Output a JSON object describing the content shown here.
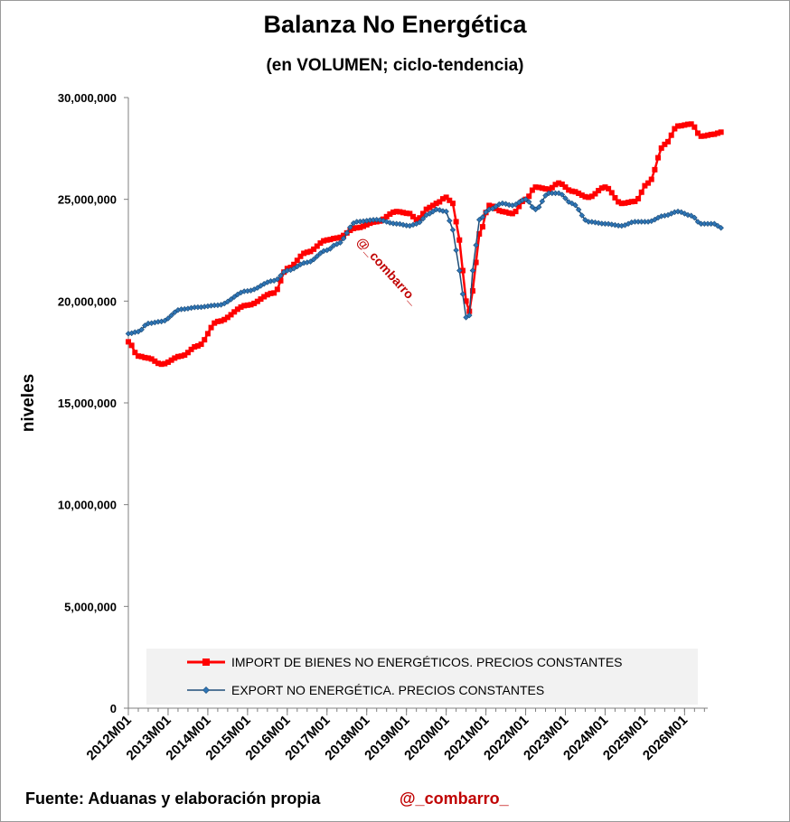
{
  "chart_data": {
    "type": "line",
    "title": "Balanza No Energética",
    "subtitle": "(en VOLUMEN; ciclo-tendencia)",
    "ylabel": "niveles",
    "xlabel": "",
    "ylim": [
      0,
      30000000
    ],
    "y_ticks": [
      "0",
      "5,000,000",
      "10,000,000",
      "15,000,000",
      "20,000,000",
      "25,000,000",
      "30,000,000"
    ],
    "y_tick_values": [
      0,
      5000000,
      10000000,
      15000000,
      20000000,
      25000000,
      30000000
    ],
    "x_ticks": [
      "2012M01",
      "2013M01",
      "2014M01",
      "2015M01",
      "2016M01",
      "2017M01",
      "2018M01",
      "2019M01",
      "2020M01",
      "2021M01",
      "2022M01",
      "2023M01",
      "2024M01",
      "2025M01",
      "2026M01"
    ],
    "x_start": "2012M01",
    "x_end": "2026M07",
    "legend_placement": "bottom",
    "grid": false,
    "series": [
      {
        "name": "IMPORT DE BIENES NO ENERGÉTICOS. PRECIOS CONSTANTES",
        "color": "#ff0000",
        "marker": "square",
        "anchors": [
          {
            "x": "2012M01",
            "y": 18000000
          },
          {
            "x": "2012M04",
            "y": 17300000
          },
          {
            "x": "2012M07",
            "y": 17200000
          },
          {
            "x": "2012M11",
            "y": 16900000
          },
          {
            "x": "2013M05",
            "y": 17300000
          },
          {
            "x": "2013M10",
            "y": 17800000
          },
          {
            "x": "2014M04",
            "y": 19000000
          },
          {
            "x": "2015M01",
            "y": 19800000
          },
          {
            "x": "2015M09",
            "y": 20400000
          },
          {
            "x": "2016M01",
            "y": 21600000
          },
          {
            "x": "2016M07",
            "y": 22400000
          },
          {
            "x": "2017M01",
            "y": 23000000
          },
          {
            "x": "2017M04",
            "y": 23100000
          },
          {
            "x": "2017M10",
            "y": 23600000
          },
          {
            "x": "2018M04",
            "y": 23900000
          },
          {
            "x": "2018M10",
            "y": 24400000
          },
          {
            "x": "2019M02",
            "y": 24300000
          },
          {
            "x": "2019M04",
            "y": 24000000
          },
          {
            "x": "2019M08",
            "y": 24600000
          },
          {
            "x": "2019M10",
            "y": 24800000
          },
          {
            "x": "2020M01",
            "y": 25100000
          },
          {
            "x": "2020M03",
            "y": 24800000
          },
          {
            "x": "2020M05",
            "y": 23000000
          },
          {
            "x": "2020M07",
            "y": 20000000
          },
          {
            "x": "2020M08",
            "y": 19500000
          },
          {
            "x": "2020M09",
            "y": 20500000
          },
          {
            "x": "2020M11",
            "y": 23300000
          },
          {
            "x": "2021M02",
            "y": 24700000
          },
          {
            "x": "2021M06",
            "y": 24400000
          },
          {
            "x": "2021M09",
            "y": 24300000
          },
          {
            "x": "2022M01",
            "y": 25000000
          },
          {
            "x": "2022M04",
            "y": 25600000
          },
          {
            "x": "2022M08",
            "y": 25500000
          },
          {
            "x": "2022M11",
            "y": 25800000
          },
          {
            "x": "2023M03",
            "y": 25400000
          },
          {
            "x": "2023M08",
            "y": 25100000
          },
          {
            "x": "2024M01",
            "y": 25600000
          },
          {
            "x": "2024M06",
            "y": 24800000
          },
          {
            "x": "2024M10",
            "y": 24900000
          },
          {
            "x": "2025M02",
            "y": 25800000
          },
          {
            "x": "2025M07",
            "y": 27700000
          },
          {
            "x": "2025M11",
            "y": 28600000
          },
          {
            "x": "2026M03",
            "y": 28700000
          },
          {
            "x": "2026M06",
            "y": 28100000
          },
          {
            "x": "2026M10",
            "y": 28200000
          },
          {
            "x": "2026M12",
            "y": 28300000
          }
        ]
      },
      {
        "name": "EXPORT NO ENERGÉTICA. PRECIOS CONSTANTES",
        "color": "#1f4e79",
        "marker": "diamond",
        "anchors": [
          {
            "x": "2012M01",
            "y": 18400000
          },
          {
            "x": "2012M04",
            "y": 18500000
          },
          {
            "x": "2012M07",
            "y": 18900000
          },
          {
            "x": "2012M11",
            "y": 19000000
          },
          {
            "x": "2013M05",
            "y": 19600000
          },
          {
            "x": "2013M10",
            "y": 19700000
          },
          {
            "x": "2014M04",
            "y": 19800000
          },
          {
            "x": "2015M01",
            "y": 20500000
          },
          {
            "x": "2015M09",
            "y": 21000000
          },
          {
            "x": "2016M01",
            "y": 21500000
          },
          {
            "x": "2016M07",
            "y": 21900000
          },
          {
            "x": "2017M01",
            "y": 22500000
          },
          {
            "x": "2017M04",
            "y": 22800000
          },
          {
            "x": "2017M10",
            "y": 23900000
          },
          {
            "x": "2018M04",
            "y": 24000000
          },
          {
            "x": "2018M10",
            "y": 23800000
          },
          {
            "x": "2019M02",
            "y": 23700000
          },
          {
            "x": "2019M04",
            "y": 23800000
          },
          {
            "x": "2019M08",
            "y": 24300000
          },
          {
            "x": "2019M10",
            "y": 24500000
          },
          {
            "x": "2020M01",
            "y": 24400000
          },
          {
            "x": "2020M03",
            "y": 23500000
          },
          {
            "x": "2020M05",
            "y": 21500000
          },
          {
            "x": "2020M07",
            "y": 19200000
          },
          {
            "x": "2020M08",
            "y": 19300000
          },
          {
            "x": "2020M09",
            "y": 21500000
          },
          {
            "x": "2020M11",
            "y": 24000000
          },
          {
            "x": "2021M02",
            "y": 24500000
          },
          {
            "x": "2021M06",
            "y": 24800000
          },
          {
            "x": "2021M09",
            "y": 24700000
          },
          {
            "x": "2022M01",
            "y": 25000000
          },
          {
            "x": "2022M04",
            "y": 24500000
          },
          {
            "x": "2022M08",
            "y": 25300000
          },
          {
            "x": "2022M11",
            "y": 25300000
          },
          {
            "x": "2023M03",
            "y": 24800000
          },
          {
            "x": "2023M08",
            "y": 23900000
          },
          {
            "x": "2024M01",
            "y": 23800000
          },
          {
            "x": "2024M06",
            "y": 23700000
          },
          {
            "x": "2024M10",
            "y": 23900000
          },
          {
            "x": "2025M02",
            "y": 23900000
          },
          {
            "x": "2025M07",
            "y": 24200000
          },
          {
            "x": "2025M11",
            "y": 24400000
          },
          {
            "x": "2026M03",
            "y": 24200000
          },
          {
            "x": "2026M06",
            "y": 23800000
          },
          {
            "x": "2026M10",
            "y": 23800000
          },
          {
            "x": "2026M12",
            "y": 23600000
          }
        ]
      }
    ]
  },
  "watermark": "@_combarro_",
  "footer": {
    "source": "Fuente: Aduanas y elaboración propia",
    "handle": "@_combarro_"
  }
}
